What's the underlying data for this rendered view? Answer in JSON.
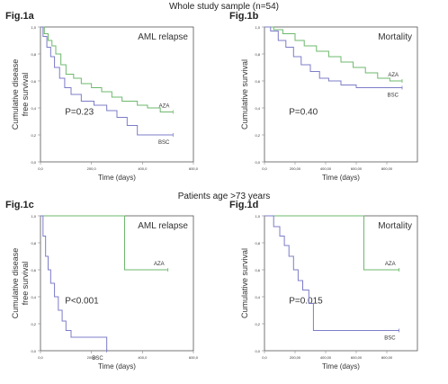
{
  "headings": {
    "top": "Whole study sample (n=54)",
    "middle": "Patients age >73 years"
  },
  "colors": {
    "aza": "#6db86d",
    "bsc": "#7c7cc8",
    "axis": "#888888",
    "frame": "#555555"
  },
  "panels": [
    {
      "fig": "Fig.1a",
      "title": "AML relapse",
      "ylabel": "Cumulative disease free survival",
      "xlabel": "Time (days)",
      "pvalue": "P=0.23"
    },
    {
      "fig": "Fig.1b",
      "title": "Mortality",
      "ylabel": "Cumulative survival",
      "xlabel": "Time (days)",
      "pvalue": "P=0.40"
    },
    {
      "fig": "Fig.1c",
      "title": "AML relapse",
      "ylabel": "Cumulative disease free survival",
      "xlabel": "Time (days)",
      "pvalue": "P<0.001"
    },
    {
      "fig": "Fig.1d",
      "title": "Mortality",
      "ylabel": "Cumulative survival",
      "xlabel": "Time (days)",
      "pvalue": "P=0.015"
    }
  ],
  "chart_data": [
    {
      "type": "line",
      "title": "AML relapse",
      "xlabel": "Time (days)",
      "ylabel": "Cumulative disease free survival",
      "xlim": [
        0,
        600
      ],
      "ylim": [
        0,
        1
      ],
      "x_ticks": [
        "0,0",
        "200,0",
        "400,0",
        "600,0"
      ],
      "y_ticks": [
        "0,0",
        "0,2",
        "0,4",
        "0,6",
        "0,8",
        "1,0"
      ],
      "annotation": "P=0.23",
      "series": [
        {
          "name": "AZA",
          "x": [
            0,
            15,
            30,
            45,
            60,
            80,
            100,
            130,
            160,
            200,
            240,
            280,
            320,
            380,
            420,
            470,
            520
          ],
          "y": [
            1.0,
            0.95,
            0.9,
            0.86,
            0.8,
            0.72,
            0.65,
            0.62,
            0.58,
            0.55,
            0.52,
            0.48,
            0.45,
            0.42,
            0.4,
            0.37,
            0.37
          ]
        },
        {
          "name": "BSC",
          "x": [
            0,
            10,
            25,
            40,
            55,
            75,
            95,
            120,
            160,
            210,
            260,
            300,
            340,
            380,
            440,
            520
          ],
          "y": [
            1.0,
            0.93,
            0.85,
            0.78,
            0.7,
            0.62,
            0.55,
            0.5,
            0.45,
            0.42,
            0.38,
            0.33,
            0.27,
            0.2,
            0.2,
            0.2
          ]
        }
      ]
    },
    {
      "type": "line",
      "title": "Mortality",
      "xlabel": "Time (days)",
      "ylabel": "Cumulative survival",
      "xlim": [
        0,
        1000
      ],
      "ylim": [
        0,
        1
      ],
      "x_ticks": [
        "0,0",
        "200,00",
        "400,00",
        "600,00",
        "800,00"
      ],
      "y_ticks": [
        "0,0",
        "0,2",
        "0,4",
        "0,6",
        "0,8",
        "1,0"
      ],
      "annotation": "P=0.40",
      "series": [
        {
          "name": "AZA",
          "x": [
            0,
            60,
            120,
            200,
            260,
            340,
            420,
            500,
            580,
            660,
            740,
            820,
            900
          ],
          "y": [
            1.0,
            0.98,
            0.95,
            0.9,
            0.86,
            0.82,
            0.78,
            0.74,
            0.7,
            0.66,
            0.62,
            0.6,
            0.6
          ]
        },
        {
          "name": "BSC",
          "x": [
            0,
            40,
            90,
            140,
            190,
            240,
            300,
            360,
            420,
            500,
            600,
            700,
            850,
            900
          ],
          "y": [
            1.0,
            0.97,
            0.9,
            0.85,
            0.78,
            0.72,
            0.67,
            0.62,
            0.6,
            0.57,
            0.55,
            0.55,
            0.55,
            0.55
          ]
        }
      ]
    },
    {
      "type": "line",
      "title": "AML relapse",
      "xlabel": "Time (days)",
      "ylabel": "Cumulative disease free survival",
      "xlim": [
        0,
        600
      ],
      "ylim": [
        0,
        1
      ],
      "x_ticks": [
        "0,0",
        "200,0",
        "400,0",
        "600,0"
      ],
      "y_ticks": [
        "0,0",
        "0,2",
        "0,4",
        "0,6",
        "0,8",
        "1,0"
      ],
      "annotation": "P<0.001",
      "series": [
        {
          "name": "AZA",
          "x": [
            0,
            100,
            200,
            300,
            330,
            400,
            450,
            500
          ],
          "y": [
            1.0,
            1.0,
            1.0,
            1.0,
            0.6,
            0.6,
            0.6,
            0.6
          ]
        },
        {
          "name": "BSC",
          "x": [
            0,
            10,
            20,
            30,
            40,
            55,
            70,
            85,
            100,
            120,
            140,
            200,
            260
          ],
          "y": [
            1.0,
            0.85,
            0.7,
            0.6,
            0.5,
            0.4,
            0.3,
            0.22,
            0.15,
            0.1,
            0.1,
            0.1,
            0.0
          ]
        }
      ]
    },
    {
      "type": "line",
      "title": "Mortality",
      "xlabel": "Time (days)",
      "ylabel": "Cumulative survival",
      "xlim": [
        0,
        1000
      ],
      "ylim": [
        0,
        1
      ],
      "x_ticks": [
        "0,0",
        "200,00",
        "400,00",
        "600,00",
        "800,00"
      ],
      "y_ticks": [
        "0,0",
        "0,2",
        "0,4",
        "0,6",
        "0,8",
        "1,0"
      ],
      "annotation": "P=0.015",
      "series": [
        {
          "name": "AZA",
          "x": [
            0,
            200,
            400,
            600,
            650,
            800,
            880
          ],
          "y": [
            1.0,
            1.0,
            1.0,
            1.0,
            0.6,
            0.6,
            0.6
          ]
        },
        {
          "name": "BSC",
          "x": [
            0,
            60,
            100,
            130,
            160,
            190,
            220,
            250,
            290,
            320,
            400,
            600,
            880
          ],
          "y": [
            1.0,
            0.92,
            0.85,
            0.78,
            0.7,
            0.6,
            0.52,
            0.45,
            0.35,
            0.15,
            0.15,
            0.15,
            0.15
          ]
        }
      ]
    }
  ]
}
